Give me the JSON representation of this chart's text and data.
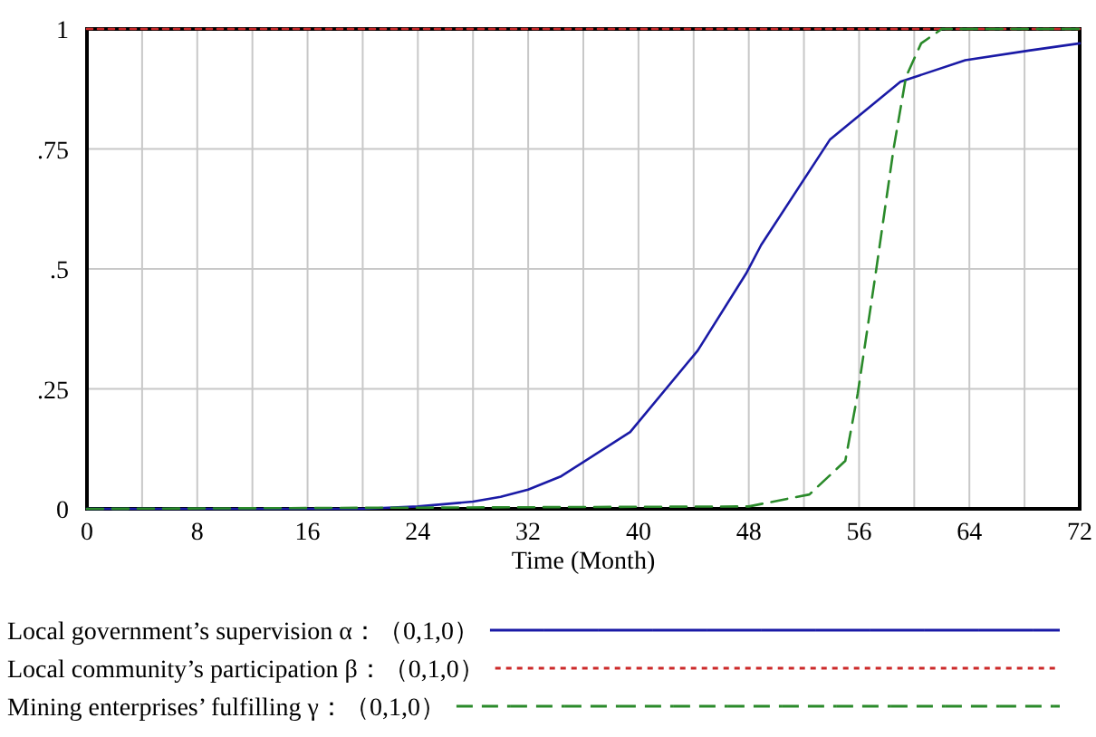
{
  "chart_data": {
    "type": "line",
    "xlabel": "Time (Month)",
    "xlim": [
      0,
      72
    ],
    "ylim": [
      0,
      1
    ],
    "xticks": [
      0,
      {
        "value": 4,
        "label": null
      },
      8,
      {
        "value": 12,
        "label": null
      },
      16,
      {
        "value": 20,
        "label": null
      },
      24,
      {
        "value": 28,
        "label": null
      },
      32,
      {
        "value": 36,
        "label": null
      },
      40,
      {
        "value": 44,
        "label": null
      },
      48,
      {
        "value": 52,
        "label": null
      },
      56,
      {
        "value": 60,
        "label": null
      },
      64,
      {
        "value": 68,
        "label": null
      },
      72
    ],
    "yticks": [
      0,
      {
        "value": 0.25,
        "label": ".25"
      },
      {
        "value": 0.5,
        "label": ".5"
      },
      {
        "value": 0.75,
        "label": ".75"
      },
      1
    ],
    "grid": true,
    "legend": "bottom",
    "series": [
      {
        "name": "Local government’s supervision α：（0,1,0）",
        "color": "#1a1aa6",
        "line_style": "solid",
        "x": [
          0,
          20,
          24,
          28,
          30,
          32,
          34.4,
          39.4,
          44.3,
          47.8,
          48.9,
          53.9,
          59,
          63.7,
          68.3,
          72
        ],
        "values": [
          0,
          0,
          0.005,
          0.015,
          0.025,
          0.04,
          0.068,
          0.16,
          0.33,
          0.49,
          0.55,
          0.77,
          0.89,
          0.935,
          0.955,
          0.97
        ]
      },
      {
        "name": "Local community’s participation β：（0,1,0）",
        "color": "#cc2a2a",
        "line_style": "dotted",
        "x": [
          0,
          72
        ],
        "values": [
          1,
          1
        ]
      },
      {
        "name": "Mining enterprises’ fulfilling γ：（0,1,0）",
        "color": "#2a8a2a",
        "line_style": "dashed",
        "x": [
          0,
          48,
          52.4,
          55,
          55.9,
          57.2,
          58.5,
          59.4,
          60.5,
          62,
          72
        ],
        "values": [
          0,
          0.005,
          0.03,
          0.1,
          0.24,
          0.49,
          0.75,
          0.9,
          0.97,
          1,
          1
        ]
      }
    ]
  }
}
